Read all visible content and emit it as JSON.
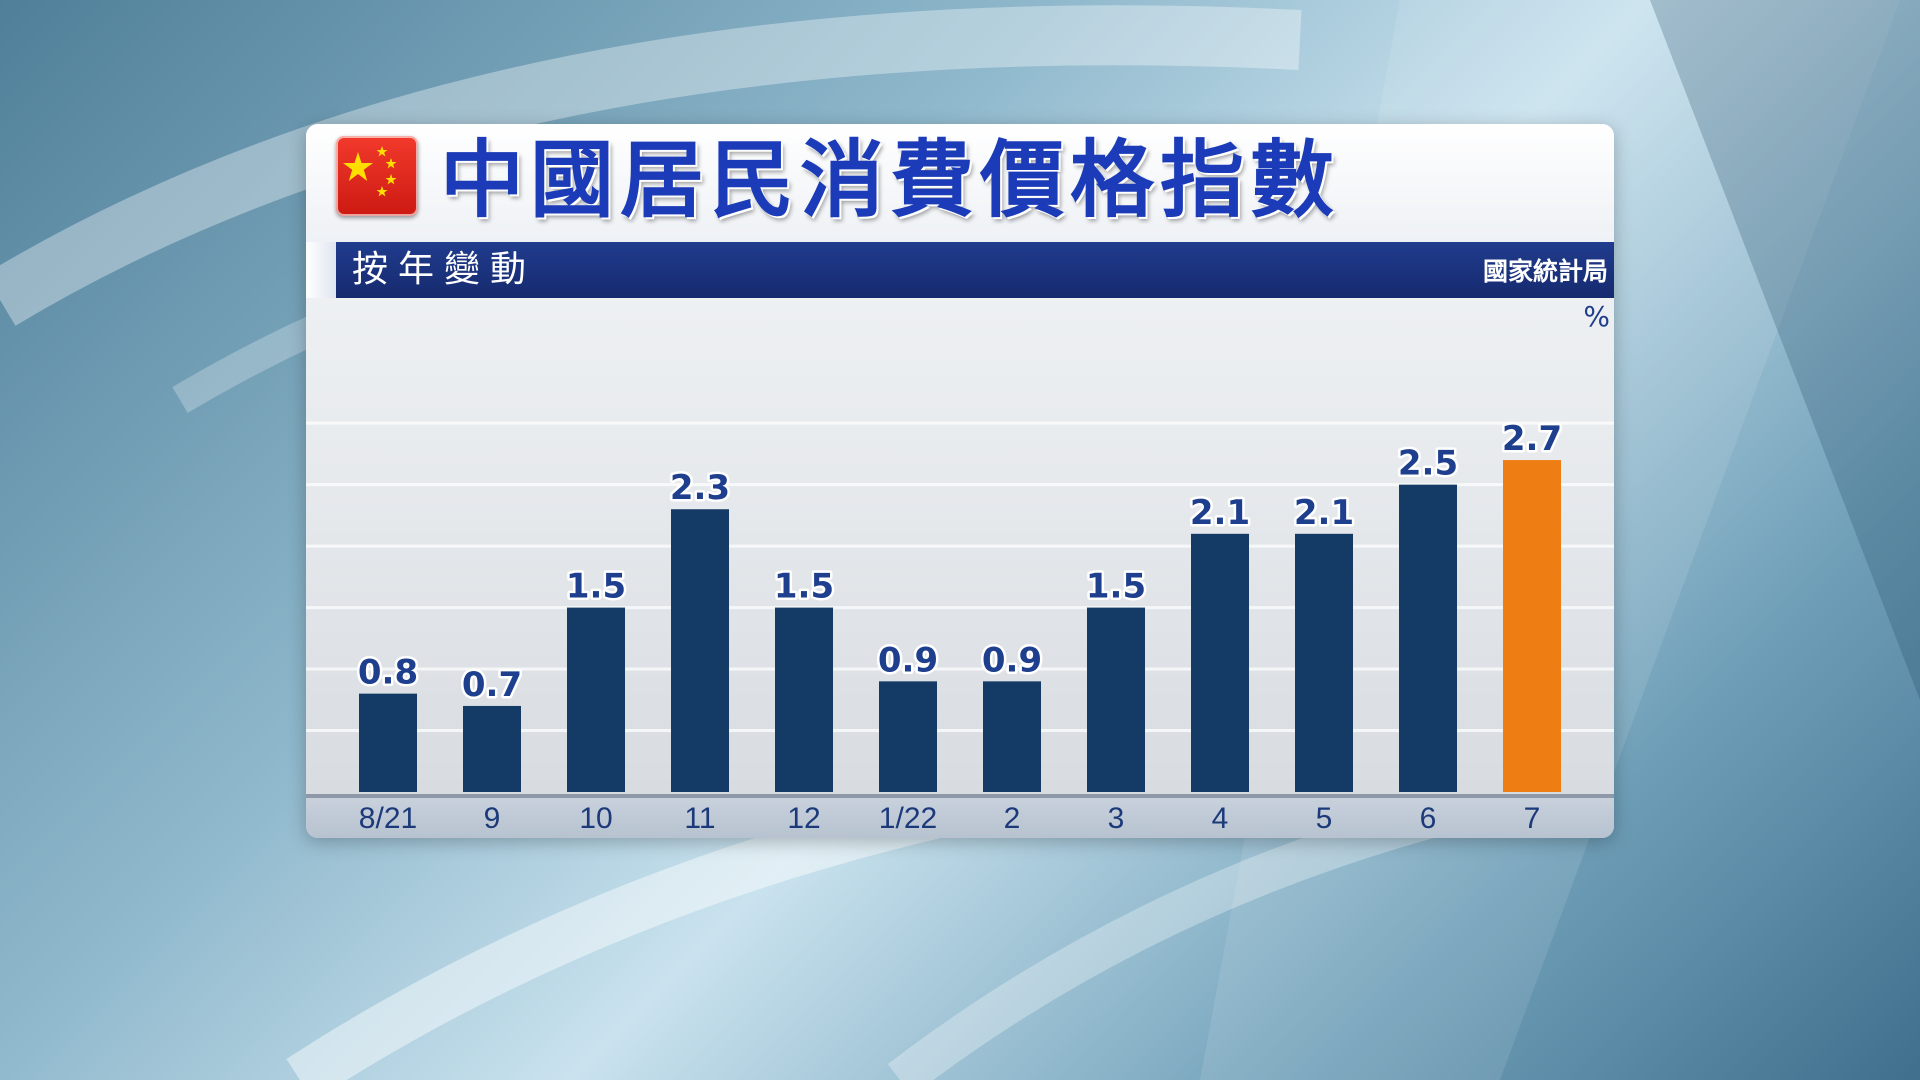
{
  "header": {
    "title": "中國居民消費價格指數",
    "subtitle": "按年變動",
    "source": "國家統計局",
    "unit": "%"
  },
  "colors": {
    "bar": "#143a66",
    "highlight_bar": "#ee7d14",
    "title": "#1b3bb8",
    "subtitle_bar": "#1a3480"
  },
  "icons": {
    "flag": "china-flag-icon"
  },
  "chart_data": {
    "type": "bar",
    "title": "中國居民消費價格指數",
    "subtitle": "按年變動",
    "ylabel": "%",
    "categories": [
      "8/21",
      "9",
      "10",
      "11",
      "12",
      "1/22",
      "2",
      "3",
      "4",
      "5",
      "6",
      "7"
    ],
    "values": [
      0.8,
      0.7,
      1.5,
      2.3,
      1.5,
      0.9,
      0.9,
      1.5,
      2.1,
      2.1,
      2.5,
      2.7
    ],
    "value_labels": [
      "0.8",
      "0.7",
      "1.5",
      "2.3",
      "1.5",
      "0.9",
      "0.9",
      "1.5",
      "2.1",
      "2.1",
      "2.5",
      "2.7"
    ],
    "highlight_category": "7",
    "ylim": [
      0,
      3.4
    ],
    "grid": true
  }
}
